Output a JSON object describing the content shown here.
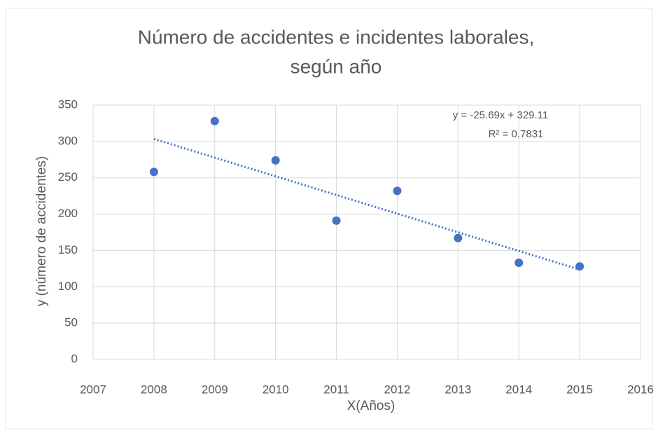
{
  "chart_data": {
    "type": "scatter",
    "title": [
      "Número de accidentes e incidentes laborales,",
      "según año"
    ],
    "x_label": "X(Años)",
    "y_label": "y (número de accidentes)",
    "x": [
      2008,
      2009,
      2010,
      2011,
      2012,
      2013,
      2014,
      2015
    ],
    "values": [
      258,
      328,
      274,
      191,
      232,
      167,
      133,
      128
    ],
    "color": "#4472c4",
    "trendline": {
      "x": [
        2008,
        2015
      ],
      "values": [
        303.4,
        123.6
      ],
      "color": "#4472c4"
    },
    "annotations": [
      "y = -25.69x + 329.11",
      "R² = 0.7831"
    ],
    "xlim": [
      2007,
      2016
    ],
    "xticks": [
      2007,
      2008,
      2009,
      2010,
      2011,
      2012,
      2013,
      2014,
      2015,
      2016
    ],
    "ylim": [
      0,
      350
    ],
    "yticks": [
      0,
      50,
      100,
      150,
      200,
      250,
      300,
      350
    ],
    "grid": true
  }
}
